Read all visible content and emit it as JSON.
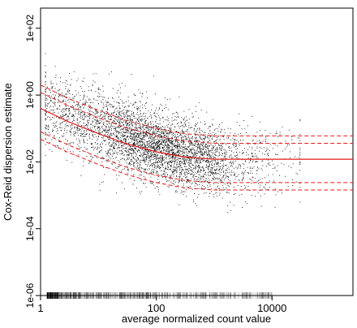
{
  "chart_data": {
    "type": "scatter",
    "xlabel": "average normalized count value",
    "ylabel": "Cox-Reid dispersion estimate",
    "x_scale": "log10",
    "y_scale": "log10",
    "xlim": [
      1,
      250000
    ],
    "ylim": [
      1e-06,
      400
    ],
    "x_ticks": [
      {
        "value": 1,
        "label": "1"
      },
      {
        "value": 100,
        "label": "100"
      },
      {
        "value": 10000,
        "label": "10000"
      }
    ],
    "y_ticks": [
      {
        "value": 1e-06,
        "label": "1e-06"
      },
      {
        "value": 0.0001,
        "label": "1e-04"
      },
      {
        "value": 0.01,
        "label": "1e-02"
      },
      {
        "value": 1,
        "label": "1e+00"
      },
      {
        "value": 100,
        "label": "1e+02"
      }
    ],
    "grid": false,
    "colors": {
      "points": "#000000",
      "fit": "#e41a1c"
    },
    "point_cloud": {
      "count": 4500,
      "seed": 7,
      "x_range": [
        1.2,
        30000
      ],
      "x_mode_log10": 2.1,
      "y_center_at_x": [
        {
          "x": 1.2,
          "y": 0.45
        },
        {
          "x": 10,
          "y": 0.12
        },
        {
          "x": 100,
          "y": 0.03
        },
        {
          "x": 1000,
          "y": 0.012
        },
        {
          "x": 30000,
          "y": 0.01
        }
      ],
      "y_spread_log10_sd": 0.55
    },
    "zero_rug": {
      "y": 1e-06,
      "x_range": [
        1.3,
        10000
      ]
    },
    "fit_curve": [
      {
        "x": 1,
        "y": 0.4
      },
      {
        "x": 3,
        "y": 0.16
      },
      {
        "x": 10,
        "y": 0.07
      },
      {
        "x": 30,
        "y": 0.035
      },
      {
        "x": 100,
        "y": 0.02
      },
      {
        "x": 300,
        "y": 0.014
      },
      {
        "x": 1000,
        "y": 0.012
      },
      {
        "x": 10000,
        "y": 0.012
      },
      {
        "x": 250000,
        "y": 0.012
      }
    ],
    "band_factors": [
      0.12,
      0.2,
      5,
      3
    ]
  }
}
